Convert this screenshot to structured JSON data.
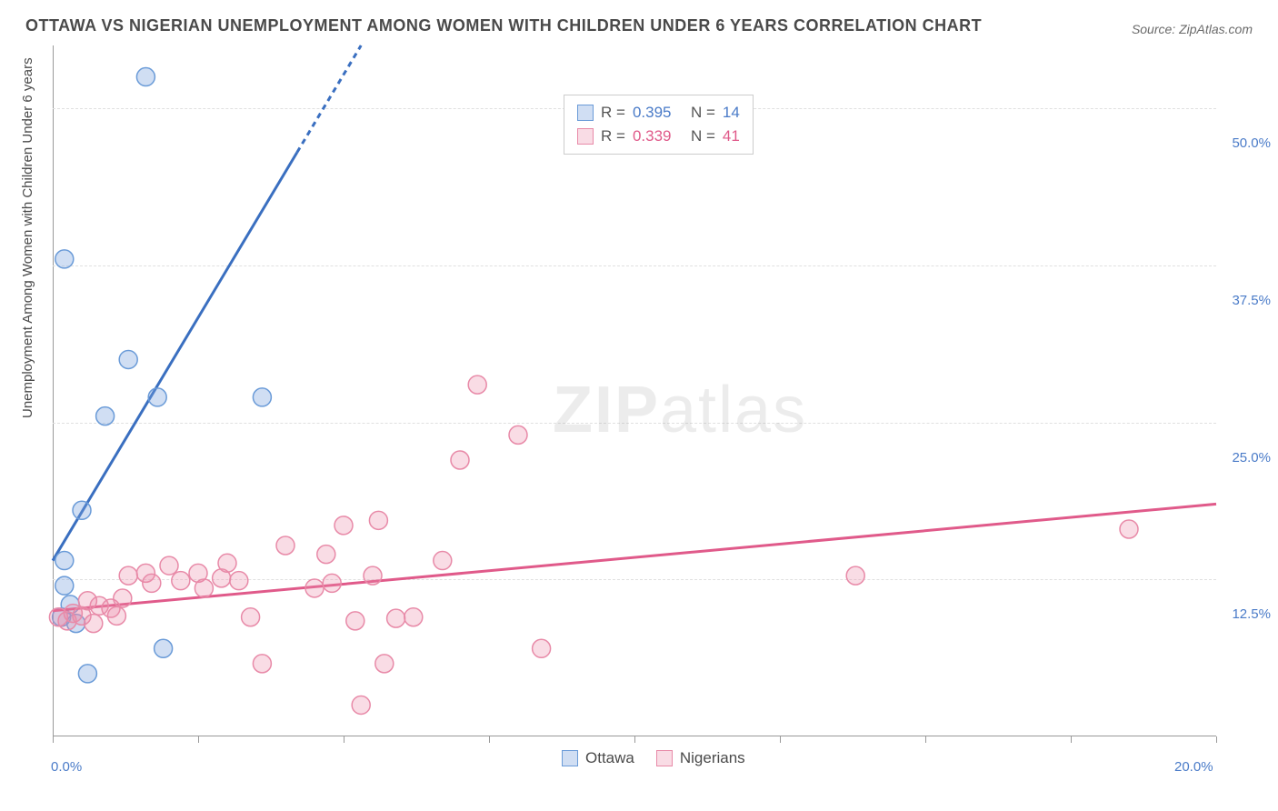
{
  "title": "OTTAWA VS NIGERIAN UNEMPLOYMENT AMONG WOMEN WITH CHILDREN UNDER 6 YEARS CORRELATION CHART",
  "source": "Source: ZipAtlas.com",
  "y_axis_title": "Unemployment Among Women with Children Under 6 years",
  "watermark": {
    "bold": "ZIP",
    "light": "atlas"
  },
  "chart": {
    "type": "scatter-with-regression",
    "background_color": "#ffffff",
    "grid_color": "#e0e0e0",
    "axis_color": "#999999",
    "xlim": [
      0,
      20
    ],
    "ylim": [
      0,
      55
    ],
    "x_ticks": [
      0,
      2.5,
      5,
      7.5,
      10,
      12.5,
      15,
      17.5,
      20
    ],
    "x_tick_labels": {
      "0": "0.0%",
      "20": "20.0%"
    },
    "y_ticks": [
      12.5,
      25.0,
      37.5,
      50.0
    ],
    "y_tick_labels": [
      "12.5%",
      "25.0%",
      "37.5%",
      "50.0%"
    ],
    "marker_radius": 10,
    "marker_stroke_width": 1.5,
    "line_width": 3,
    "series": [
      {
        "name": "Ottawa",
        "color_fill": "rgba(120,160,220,0.35)",
        "color_stroke": "#6a9bd8",
        "line_color": "#3a6fc0",
        "R": "0.395",
        "N": "14",
        "points": [
          [
            1.6,
            52.5
          ],
          [
            0.2,
            38.0
          ],
          [
            1.3,
            30.0
          ],
          [
            1.8,
            27.0
          ],
          [
            0.9,
            25.5
          ],
          [
            3.6,
            27.0
          ],
          [
            0.5,
            18.0
          ],
          [
            0.2,
            14.0
          ],
          [
            0.2,
            12.0
          ],
          [
            0.3,
            10.5
          ],
          [
            0.15,
            9.5
          ],
          [
            0.4,
            9.0
          ],
          [
            0.6,
            5.0
          ],
          [
            1.9,
            7.0
          ]
        ],
        "regression": {
          "x1": 0,
          "y1": 14.0,
          "x2": 5.3,
          "y2": 55.0,
          "dash_from_x": 4.2
        }
      },
      {
        "name": "Nigerians",
        "color_fill": "rgba(235,140,170,0.30)",
        "color_stroke": "#e88aa8",
        "line_color": "#e05a8a",
        "R": "0.339",
        "N": "41",
        "points": [
          [
            0.1,
            9.5
          ],
          [
            0.25,
            9.2
          ],
          [
            0.35,
            9.8
          ],
          [
            0.5,
            9.6
          ],
          [
            0.6,
            10.8
          ],
          [
            0.7,
            9.0
          ],
          [
            0.8,
            10.4
          ],
          [
            1.0,
            10.2
          ],
          [
            1.1,
            9.6
          ],
          [
            1.2,
            11.0
          ],
          [
            1.3,
            12.8
          ],
          [
            1.6,
            13.0
          ],
          [
            1.7,
            12.2
          ],
          [
            2.0,
            13.6
          ],
          [
            2.2,
            12.4
          ],
          [
            2.5,
            13.0
          ],
          [
            2.6,
            11.8
          ],
          [
            2.9,
            12.6
          ],
          [
            3.2,
            12.4
          ],
          [
            3.4,
            9.5
          ],
          [
            3.6,
            5.8
          ],
          [
            4.0,
            15.2
          ],
          [
            4.5,
            11.8
          ],
          [
            4.7,
            14.5
          ],
          [
            5.0,
            16.8
          ],
          [
            5.2,
            9.2
          ],
          [
            5.3,
            2.5
          ],
          [
            5.5,
            12.8
          ],
          [
            5.6,
            17.2
          ],
          [
            5.7,
            5.8
          ],
          [
            5.9,
            9.4
          ],
          [
            6.2,
            9.5
          ],
          [
            6.7,
            14.0
          ],
          [
            7.0,
            22.0
          ],
          [
            7.3,
            28.0
          ],
          [
            8.0,
            24.0
          ],
          [
            8.4,
            7.0
          ],
          [
            13.8,
            12.8
          ],
          [
            18.5,
            16.5
          ],
          [
            4.8,
            12.2
          ],
          [
            3.0,
            13.8
          ]
        ],
        "regression": {
          "x1": 0,
          "y1": 10.0,
          "x2": 20,
          "y2": 18.5
        }
      }
    ]
  },
  "legend_top": {
    "rows": [
      {
        "swatch_fill": "rgba(120,160,220,0.35)",
        "swatch_stroke": "#6a9bd8",
        "r_label": "R =",
        "r_val": "0.395",
        "n_label": "N =",
        "n_val": "14",
        "val_color": "#4a7bc8"
      },
      {
        "swatch_fill": "rgba(235,140,170,0.30)",
        "swatch_stroke": "#e88aa8",
        "r_label": "R =",
        "r_val": "0.339",
        "n_label": "N =",
        "n_val": "41",
        "val_color": "#e05a8a"
      }
    ]
  },
  "legend_bottom": [
    {
      "swatch_fill": "rgba(120,160,220,0.35)",
      "swatch_stroke": "#6a9bd8",
      "label": "Ottawa"
    },
    {
      "swatch_fill": "rgba(235,140,170,0.30)",
      "swatch_stroke": "#e88aa8",
      "label": "Nigerians"
    }
  ]
}
